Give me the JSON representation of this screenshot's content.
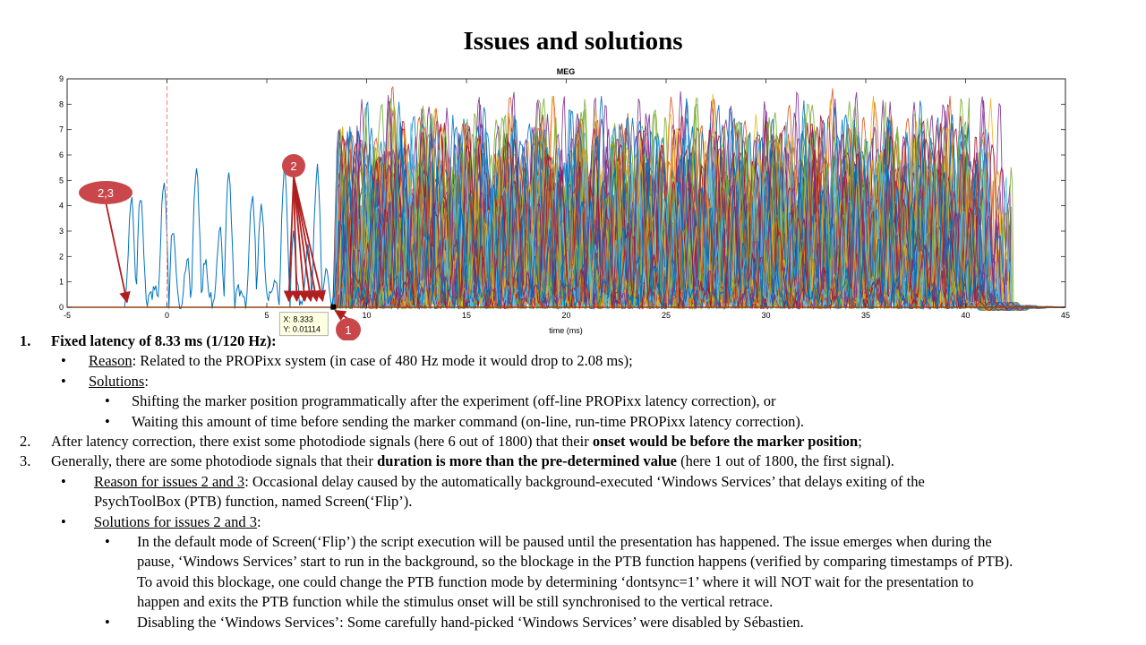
{
  "title": "Issues and solutions",
  "chart_data": {
    "type": "line",
    "title": "MEG",
    "xlabel": "time (ms)",
    "ylabel": "",
    "xlim": [
      -5,
      45
    ],
    "ylim": [
      0,
      9
    ],
    "xticks": [
      "-5",
      "0",
      "5",
      "10",
      "15",
      "20",
      "25",
      "30",
      "35",
      "40",
      "45"
    ],
    "yticks": [
      "0",
      "1",
      "2",
      "3",
      "4",
      "5",
      "6",
      "7",
      "8",
      "9"
    ],
    "marker_line_x": 0,
    "series_colors": [
      "#0072BD",
      "#D95319",
      "#EDB120",
      "#7E2F8E",
      "#77AC30",
      "#4DBEEE",
      "#A2142F"
    ],
    "datatip": {
      "x_label": "X: 8.333",
      "y_label": "Y: 0.01114",
      "x": 8.333,
      "y": 0.01114
    },
    "annotations": [
      {
        "label": "2,3",
        "color": "#C9474B"
      },
      {
        "label": "2",
        "color": "#C9474B"
      },
      {
        "label": "1",
        "color": "#C9474B"
      }
    ]
  },
  "notes": {
    "item1": {
      "num": "1.",
      "text": "Fixed latency of 8.33 ms (1/120 Hz):"
    },
    "item1_reason": {
      "label": "Reason",
      "text": ": Related to the PROPixx system (in case of 480 Hz mode it would drop to 2.08 ms);"
    },
    "item1_solutions": {
      "label": "Solutions",
      "text": ":"
    },
    "item1_sol1": "Shifting the marker position programmatically after the experiment (off-line PROPixx latency correction), or",
    "item1_sol2": "Waiting this amount of time before sending the marker command (on-line, run-time PROPixx latency correction).",
    "item2": {
      "num": "2.",
      "text_a": "After latency correction, there exist some photodiode signals (here 6 out of 1800) that their ",
      "bold": "onset would be before the marker position",
      "text_b": ";"
    },
    "item3": {
      "num": "3.",
      "text_a": "Generally, there are some photodiode signals that their ",
      "bold": "duration is more than the pre-determined value",
      "text_b": " (here 1 out of 1800, the first signal)."
    },
    "item3_reason": {
      "label": "Reason for issues 2 and 3",
      "line1": ": Occasional delay caused by the automatically background-executed ‘Windows Services’ that delays exiting of the",
      "line2": "PsychToolBox (PTB) function, named Screen(‘Flip’)."
    },
    "item3_solutions": {
      "label": "Solutions for issues 2 and 3",
      "text": ":"
    },
    "item3_sol1": [
      "In the default mode of Screen(‘Flip’) the script execution will be paused until the presentation has happened. The issue emerges when during the",
      "pause, ‘Windows Services’ start to run in the background, so the blockage in the PTB function happens (verified by comparing timestamps of PTB).",
      "To avoid this blockage, one could change the PTB function mode by determining ‘dontsync=1’ where it will NOT wait for the presentation to",
      "happen and exits the PTB function while the stimulus onset will be still synchronised to the vertical retrace."
    ],
    "item3_sol2": "Disabling the ‘Windows Services’: Some carefully hand-picked ‘Windows Services’ were disabled by Sébastien.",
    "bullet_l1": "•",
    "bullet_l2": "•"
  }
}
